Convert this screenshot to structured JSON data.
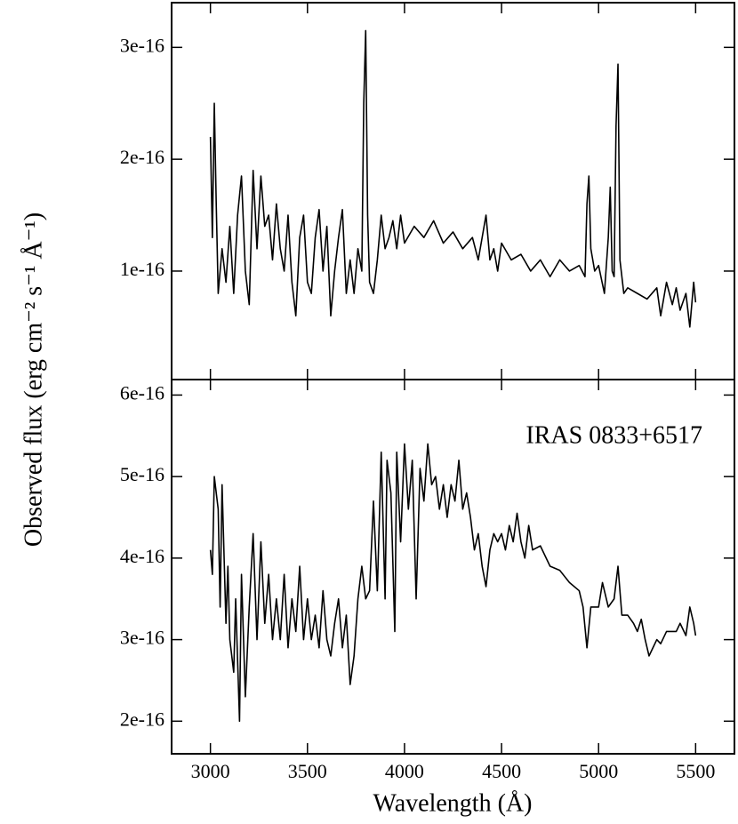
{
  "chart_data": [
    {
      "type": "line",
      "ylabel": "Observed flux (erg cm⁻² s⁻¹ Å⁻¹)",
      "color": "#000000",
      "xlim": [
        2800,
        5700
      ],
      "ylim": [
        3e-18,
        3.4e-16
      ],
      "xticks": [
        3000,
        3500,
        4000,
        4500,
        5000,
        5500
      ],
      "xticklabels": false,
      "yticks": [
        1e-16,
        2e-16,
        3e-16
      ],
      "x": [
        3000,
        3010,
        3020,
        3030,
        3040,
        3060,
        3080,
        3100,
        3120,
        3140,
        3160,
        3180,
        3200,
        3220,
        3240,
        3260,
        3280,
        3300,
        3320,
        3340,
        3360,
        3380,
        3400,
        3420,
        3440,
        3460,
        3480,
        3500,
        3520,
        3540,
        3560,
        3580,
        3600,
        3620,
        3640,
        3660,
        3680,
        3700,
        3720,
        3740,
        3760,
        3780,
        3790,
        3800,
        3810,
        3820,
        3840,
        3860,
        3880,
        3900,
        3920,
        3940,
        3960,
        3980,
        4000,
        4050,
        4100,
        4150,
        4200,
        4250,
        4300,
        4350,
        4380,
        4400,
        4420,
        4440,
        4460,
        4480,
        4500,
        4550,
        4600,
        4650,
        4700,
        4750,
        4800,
        4850,
        4900,
        4930,
        4940,
        4950,
        4960,
        4980,
        5000,
        5030,
        5050,
        5060,
        5070,
        5080,
        5090,
        5100,
        5110,
        5130,
        5150,
        5200,
        5250,
        5300,
        5320,
        5350,
        5380,
        5400,
        5420,
        5450,
        5470,
        5490,
        5500
      ],
      "values": [
        2.2e-16,
        1.3e-16,
        2.5e-16,
        1.6e-16,
        8e-17,
        1.2e-16,
        9e-17,
        1.4e-16,
        8e-17,
        1.5e-16,
        1.85e-16,
        1e-16,
        7e-17,
        1.9e-16,
        1.2e-16,
        1.85e-16,
        1.4e-16,
        1.5e-16,
        1.1e-16,
        1.6e-16,
        1.2e-16,
        1e-16,
        1.5e-16,
        9e-17,
        6e-17,
        1.3e-16,
        1.5e-16,
        9e-17,
        8e-17,
        1.3e-16,
        1.55e-16,
        1e-16,
        1.4e-16,
        6e-17,
        1e-16,
        1.3e-16,
        1.55e-16,
        8e-17,
        1.1e-16,
        8e-17,
        1.2e-16,
        1e-16,
        2.5e-16,
        3.15e-16,
        1.5e-16,
        9e-17,
        8e-17,
        1.1e-16,
        1.5e-16,
        1.2e-16,
        1.3e-16,
        1.45e-16,
        1.2e-16,
        1.5e-16,
        1.25e-16,
        1.4e-16,
        1.3e-16,
        1.45e-16,
        1.25e-16,
        1.35e-16,
        1.2e-16,
        1.3e-16,
        1.1e-16,
        1.3e-16,
        1.5e-16,
        1.1e-16,
        1.2e-16,
        1e-16,
        1.25e-16,
        1.1e-16,
        1.15e-16,
        1e-16,
        1.1e-16,
        9.5e-17,
        1.1e-16,
        1e-16,
        1.05e-16,
        9.5e-17,
        1.6e-16,
        1.85e-16,
        1.2e-16,
        1e-16,
        1.05e-16,
        8e-17,
        1.3e-16,
        1.75e-16,
        1e-16,
        9.5e-17,
        2.3e-16,
        2.85e-16,
        1.1e-16,
        8e-17,
        8.5e-17,
        8e-17,
        7.5e-17,
        8.5e-17,
        6e-17,
        9e-17,
        7e-17,
        8.5e-17,
        6.5e-17,
        8e-17,
        5e-17,
        9e-17,
        7.2e-17
      ]
    },
    {
      "type": "line",
      "xlabel": "Wavelength (Å)",
      "annotation": "IRAS 0833+6517",
      "color": "#000000",
      "xlim": [
        2800,
        5700
      ],
      "ylim": [
        1.6e-16,
        6.19e-16
      ],
      "xticks": [
        3000,
        3500,
        4000,
        4500,
        5000,
        5500
      ],
      "xticklabels": true,
      "yticks": [
        2e-16,
        3e-16,
        4e-16,
        5e-16,
        6e-16
      ],
      "x": [
        3000,
        3010,
        3020,
        3040,
        3050,
        3060,
        3080,
        3090,
        3100,
        3120,
        3130,
        3150,
        3160,
        3180,
        3200,
        3220,
        3240,
        3260,
        3280,
        3300,
        3320,
        3340,
        3360,
        3380,
        3400,
        3420,
        3440,
        3460,
        3480,
        3500,
        3520,
        3540,
        3560,
        3580,
        3600,
        3620,
        3640,
        3660,
        3680,
        3700,
        3720,
        3740,
        3760,
        3780,
        3800,
        3820,
        3840,
        3860,
        3880,
        3900,
        3910,
        3930,
        3950,
        3960,
        3980,
        4000,
        4020,
        4040,
        4060,
        4080,
        4100,
        4120,
        4140,
        4160,
        4180,
        4200,
        4220,
        4240,
        4260,
        4280,
        4300,
        4320,
        4340,
        4360,
        4380,
        4400,
        4420,
        4440,
        4460,
        4480,
        4500,
        4520,
        4540,
        4560,
        4580,
        4600,
        4620,
        4640,
        4660,
        4700,
        4750,
        4800,
        4850,
        4900,
        4920,
        4940,
        4960,
        5000,
        5020,
        5050,
        5080,
        5100,
        5120,
        5150,
        5180,
        5200,
        5220,
        5240,
        5260,
        5280,
        5300,
        5320,
        5350,
        5400,
        5420,
        5450,
        5470,
        5490,
        5500
      ],
      "values": [
        4.1e-16,
        3.8e-16,
        5e-16,
        4.6e-16,
        3.4e-16,
        4.9e-16,
        3.2e-16,
        3.9e-16,
        3e-16,
        2.6e-16,
        3.5e-16,
        2e-16,
        3.8e-16,
        2.3e-16,
        3.4e-16,
        4.3e-16,
        3e-16,
        4.2e-16,
        3.2e-16,
        3.8e-16,
        3e-16,
        3.5e-16,
        3e-16,
        3.8e-16,
        2.9e-16,
        3.5e-16,
        3.1e-16,
        3.9e-16,
        3e-16,
        3.5e-16,
        3e-16,
        3.3e-16,
        2.9e-16,
        3.6e-16,
        3e-16,
        2.8e-16,
        3.2e-16,
        3.5e-16,
        2.9e-16,
        3.3e-16,
        2.45e-16,
        2.8e-16,
        3.5e-16,
        3.9e-16,
        3.5e-16,
        3.6e-16,
        4.7e-16,
        3.6e-16,
        5.3e-16,
        3.5e-16,
        5.2e-16,
        4.8e-16,
        3.1e-16,
        5.3e-16,
        4.2e-16,
        5.4e-16,
        4.6e-16,
        5.2e-16,
        3.5e-16,
        5.1e-16,
        4.7e-16,
        5.4e-16,
        4.9e-16,
        5e-16,
        4.6e-16,
        4.9e-16,
        4.5e-16,
        4.9e-16,
        4.7e-16,
        5.2e-16,
        4.6e-16,
        4.8e-16,
        4.5e-16,
        4.1e-16,
        4.3e-16,
        3.9e-16,
        3.65e-16,
        4.1e-16,
        4.3e-16,
        4.2e-16,
        4.3e-16,
        4.1e-16,
        4.4e-16,
        4.2e-16,
        4.55e-16,
        4.2e-16,
        4e-16,
        4.4e-16,
        4.1e-16,
        4.15e-16,
        3.9e-16,
        3.85e-16,
        3.7e-16,
        3.6e-16,
        3.4e-16,
        2.9e-16,
        3.4e-16,
        3.4e-16,
        3.7e-16,
        3.4e-16,
        3.5e-16,
        3.9e-16,
        3.3e-16,
        3.3e-16,
        3.2e-16,
        3.1e-16,
        3.25e-16,
        3e-16,
        2.8e-16,
        2.9e-16,
        3e-16,
        2.95e-16,
        3.1e-16,
        3.1e-16,
        3.2e-16,
        3.05e-16,
        3.4e-16,
        3.2e-16,
        3.05e-16
      ]
    }
  ]
}
